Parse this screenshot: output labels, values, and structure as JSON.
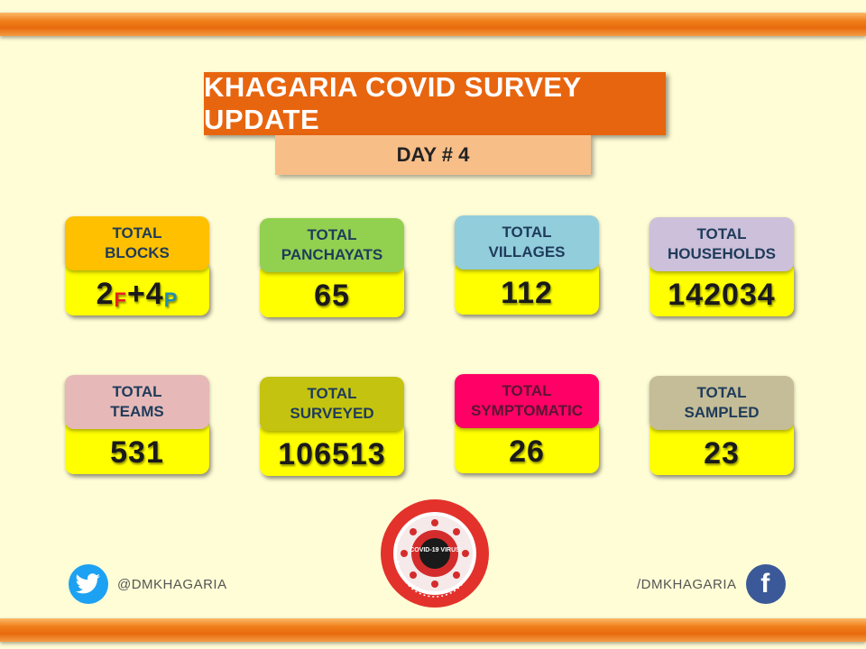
{
  "header": {
    "title": "KHAGARIA COVID SURVEY UPDATE",
    "day": "DAY # 4"
  },
  "cards": [
    {
      "line1": "TOTAL",
      "line2": "BLOCKS",
      "value_parts": [
        "2",
        "F",
        "+4",
        "P"
      ],
      "color": "#ffc000"
    },
    {
      "line1": "TOTAL",
      "line2": "PANCHAYATS",
      "value": "65",
      "color": "#92d050"
    },
    {
      "line1": "TOTAL",
      "line2": "VILLAGES",
      "value": "112",
      "color": "#92cddc"
    },
    {
      "line1": "TOTAL",
      "line2": "HOUSEHOLDS",
      "value": "142034",
      "color": "#ccc0da"
    },
    {
      "line1": "TOTAL",
      "line2": "TEAMS",
      "value": "531",
      "color": "#e6b9b8"
    },
    {
      "line1": "TOTAL",
      "line2": "SURVEYED",
      "value": "106513",
      "color": "#c4c410"
    },
    {
      "line1": "TOTAL",
      "line2": "SYMPTOMATIC",
      "value": "26",
      "color": "#ff0066"
    },
    {
      "line1": "TOTAL",
      "line2": "SAMPLED",
      "value": "23",
      "color": "#c4bd97"
    }
  ],
  "social": {
    "twitter_handle": "@DMKHAGARIA",
    "facebook_handle": "/DMKHAGARIA",
    "twitter_icon": "twitter-bird-icon",
    "facebook_icon": "facebook-f-icon"
  },
  "logo": {
    "text": "COVID-19 VIRUS",
    "icon": "covid-virus-seal-icon"
  },
  "colors": {
    "title_bg": "#e8650f",
    "day_bg": "#f8be88",
    "value_bg": "#ffff00",
    "page_bg": "#fffdd6"
  }
}
